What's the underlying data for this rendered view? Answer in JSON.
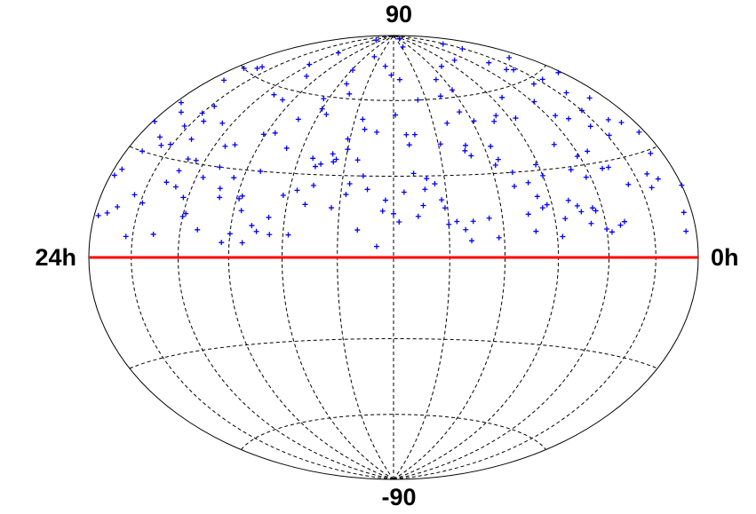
{
  "chart_data": {
    "type": "scatter",
    "projection": "hammer",
    "xlim": [
      24,
      0
    ],
    "xticks": [
      {
        "value": 24,
        "label": "24h"
      },
      {
        "value": 0,
        "label": "0h"
      }
    ],
    "ylim": [
      -90,
      90
    ],
    "yticks": [
      -90,
      90
    ],
    "meridians": [
      2,
      4,
      6,
      8,
      10,
      12,
      14,
      16,
      18,
      20,
      22
    ],
    "parallels": [
      -60,
      -30,
      30,
      60
    ],
    "highlight_parallel": 0,
    "highlight_color": "#ff0000",
    "color": "#0000ff",
    "marker": "+",
    "x": [
      0.4,
      3.1,
      7.8,
      12.2,
      16.5,
      20.9,
      1.7,
      5.3,
      9.6,
      14.0,
      18.3,
      22.7,
      2.5,
      6.9,
      11.1,
      15.4,
      19.8,
      23.2,
      4.0,
      8.4,
      13.0,
      17.2,
      21.5,
      0.9,
      4.8,
      9.2,
      13.6,
      17.9,
      22.1,
      2.2,
      6.4,
      10.7,
      14.9,
      19.3,
      23.6,
      3.6,
      7.1,
      11.8,
      16.0,
      20.4,
      1.2,
      5.8,
      10.2,
      14.5,
      18.9,
      23.0,
      3.3,
      7.5,
      12.6,
      16.9,
      21.2,
      0.2,
      4.4,
      8.9,
      13.3,
      17.6,
      22.4,
      2.9,
      6.1,
      10.5,
      15.1,
      19.5,
      23.8,
      3.9,
      8.2,
      12.9,
      17.4,
      21.8,
      1.5,
      5.6,
      9.9,
      14.3,
      18.6,
      22.9,
      2.7,
      7.3,
      11.4,
      15.8,
      20.1,
      0.6,
      4.9,
      9.0,
      13.8,
      18.1,
      22.3,
      1.9,
      6.6,
      10.9,
      15.2,
      19.6,
      23.4,
      3.0,
      7.7,
      12.0,
      16.3,
      20.7,
      0.8,
      5.1,
      9.4,
      13.5,
      17.8,
      22.0,
      2.3,
      6.8,
      11.2,
      15.6,
      19.9,
      23.9,
      4.2,
      8.6,
      12.4,
      16.7,
      21.1,
      1.0,
      5.4,
      9.7,
      14.1,
      18.4,
      22.8,
      3.5,
      7.9,
      11.6,
      15.9,
      20.2,
      0.3,
      4.6,
      8.8,
      13.2,
      17.5,
      21.9,
      2.0,
      6.2,
      10.4,
      14.8,
      19.1,
      23.3,
      3.8,
      8.0,
      12.3,
      16.6,
      20.8,
      1.4,
      5.7,
      10.0,
      14.4,
      18.7,
      23.1,
      2.6,
      7.0,
      11.3,
      15.5,
      19.7,
      0.0,
      4.1,
      8.5,
      12.8,
      17.0,
      21.3,
      1.6,
      6.0,
      10.1,
      14.6,
      18.8,
      23.5,
      3.4,
      7.6,
      11.9,
      16.2,
      20.5,
      0.5,
      4.7,
      9.1,
      13.4,
      17.7,
      22.2,
      2.1,
      6.5,
      10.8,
      15.0,
      19.4,
      23.7,
      3.2,
      7.2,
      11.5,
      15.7,
      20.0,
      0.7,
      5.0,
      9.3,
      13.7,
      18.0,
      22.5,
      2.4,
      6.7,
      11.0,
      15.3,
      19.2,
      23.8,
      4.3,
      8.7
    ],
    "values": [
      12,
      45,
      33,
      71,
      8,
      27,
      58,
      19,
      84,
      40,
      5,
      63,
      22,
      49,
      15,
      36,
      77,
      30,
      9,
      54,
      25,
      11,
      43,
      67,
      38,
      6,
      52,
      20,
      34,
      80,
      17,
      29,
      62,
      9,
      24,
      47,
      73,
      13,
      55,
      31,
      41,
      7,
      21,
      35,
      66,
      14,
      28,
      88,
      4,
      50,
      23,
      57,
      16,
      39,
      10,
      44,
      18,
      69,
      32,
      60,
      26,
      37,
      11,
      53,
      7,
      75,
      30,
      48,
      20,
      13,
      42,
      18,
      56,
      35,
      65,
      25,
      46,
      8,
      70,
      29,
      15,
      61,
      23,
      43,
      6,
      37,
      51,
      19,
      33,
      86,
      12,
      28,
      40,
      16,
      59,
      22,
      48,
      74,
      10,
      36,
      21,
      45,
      64,
      9,
      31,
      53,
      14,
      38,
      26,
      68,
      17,
      39,
      7,
      22,
      57,
      13,
      44,
      27,
      62,
      34,
      50,
      24,
      72,
      19,
      35,
      11,
      41,
      30,
      5,
      16,
      46,
      18,
      27,
      79,
      38,
      55,
      8,
      63,
      21,
      14,
      31,
      24,
      49,
      12,
      36,
      20,
      43,
      58,
      15,
      42,
      66,
      26,
      19,
      33,
      14,
      47,
      9,
      37,
      52,
      28,
      18,
      38,
      23,
      60,
      10,
      35,
      54,
      22,
      44,
      7,
      29,
      13,
      48,
      16,
      40,
      76,
      21,
      25,
      34,
      57,
      45,
      11,
      30,
      69,
      24,
      13,
      39,
      17,
      50,
      27,
      8,
      33,
      41,
      26,
      46,
      19,
      30,
      22,
      15,
      37
    ]
  }
}
